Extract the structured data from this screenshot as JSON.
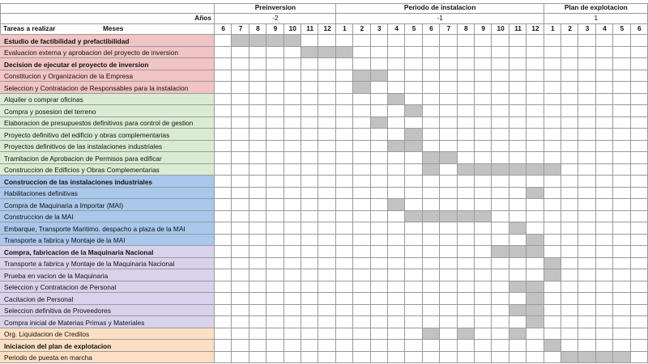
{
  "header": {
    "anos_label": "Años",
    "tareas_label": "Tareas a realizar",
    "meses_label": "Meses"
  },
  "phases": [
    {
      "title": "Preinversion",
      "year": "-2",
      "months": [
        "6",
        "7",
        "8",
        "9",
        "10",
        "11",
        "12"
      ]
    },
    {
      "title": "Periodo de instalacion",
      "year": "-1",
      "months": [
        "1",
        "2",
        "3",
        "4",
        "5",
        "6",
        "7",
        "8",
        "9",
        "10",
        "11",
        "12"
      ]
    },
    {
      "title": "Plan de explotacion",
      "year": "1",
      "months": [
        "1",
        "2",
        "3",
        "4",
        "5",
        "6"
      ]
    }
  ],
  "colors": {
    "red": "#f2c4c4",
    "green": "#d9ecd2",
    "blue": "#a9c8ec",
    "purple": "#d9d2ec",
    "orange": "#fde0c4",
    "bar": "#c2c2c2",
    "bar_light": "#d8d8d8"
  },
  "tasks": [
    {
      "label": "Estudio de factibilidad y prefactibilidad",
      "bold": true,
      "color": "red",
      "bars": [
        1,
        2,
        3,
        4
      ]
    },
    {
      "label": "Evaluacion externa y aprobacion del proyecto de inversion",
      "bold": false,
      "color": "red",
      "bars": [
        5,
        6,
        7
      ]
    },
    {
      "label": "Decision de ejecutar el proyecto de inversion",
      "bold": true,
      "color": "red",
      "bars": []
    },
    {
      "label": "Constitucion y Organizacion de la Empresa",
      "bold": false,
      "color": "red",
      "bars": [
        8,
        9
      ]
    },
    {
      "label": "Seleccion y Contratacion de Responsables para la instalacion",
      "bold": false,
      "color": "red",
      "bars": [
        8
      ]
    },
    {
      "label": "Alquiler o comprar oficinas",
      "bold": false,
      "color": "green",
      "bars": [
        10
      ]
    },
    {
      "label": "Compra y posesion del terreno",
      "bold": false,
      "color": "green",
      "bars": [
        11
      ]
    },
    {
      "label": "Elaboracion de presupuestos definitivos para control de gestion",
      "bold": false,
      "color": "green",
      "bars": [
        9
      ]
    },
    {
      "label": "Proyecto definitivo del edificio y obras complementarias",
      "bold": false,
      "color": "green",
      "bars": [
        11
      ]
    },
    {
      "label": "Proyectos definitivos de las instalaciones industriales",
      "bold": false,
      "color": "green",
      "bars": [
        10,
        11
      ]
    },
    {
      "label": "Tramitacion de Aprobacion de Permisos para edificar",
      "bold": false,
      "color": "green",
      "bars": [
        12,
        13
      ]
    },
    {
      "label": "Construccion de Edificios y Obras Complementarias",
      "bold": false,
      "color": "green",
      "bars": [
        12,
        14,
        15,
        16,
        17,
        18,
        19
      ]
    },
    {
      "label": "Construccion de las instalaciones industriales",
      "bold": true,
      "color": "blue",
      "bars": []
    },
    {
      "label": "Habilitaciones definitivas",
      "bold": false,
      "color": "blue",
      "bars": [
        18
      ]
    },
    {
      "label": "Compra de Maquinaria a Importar (MAI)",
      "bold": false,
      "color": "blue",
      "bars": [
        10
      ]
    },
    {
      "label": "Construccion de la MAI",
      "bold": false,
      "color": "blue",
      "bars": [
        11,
        12,
        13,
        14,
        15
      ]
    },
    {
      "label": "Embarque, Transporte Maritimo. despacho a plaza de la MAI",
      "bold": false,
      "color": "blue",
      "bars": [
        17
      ]
    },
    {
      "label": "Transporte a fabrica y Montaje de la MAI",
      "bold": false,
      "color": "blue",
      "bars": [
        18
      ]
    },
    {
      "label": "Compra, fabricacion de la Maquinaria Nacional",
      "bold": true,
      "color": "purple",
      "bars": [
        16,
        17,
        18
      ]
    },
    {
      "label": "Transporte a fabrica y Montaje de la Maquinaria Nacional",
      "bold": false,
      "color": "purple",
      "bars": [
        19
      ]
    },
    {
      "label": "Prueba en vacion de la Maquinaria",
      "bold": false,
      "color": "purple",
      "bars": [
        19
      ]
    },
    {
      "label": "Seleccion y Contratacion de Personal",
      "bold": false,
      "color": "purple",
      "bars": [
        17,
        18
      ]
    },
    {
      "label": "Cacitacion de Personal",
      "bold": false,
      "color": "purple",
      "bars": [
        18
      ]
    },
    {
      "label": "Seleccion definitiva de Proveedores",
      "bold": false,
      "color": "purple",
      "bars": [
        17,
        18
      ]
    },
    {
      "label": "Compra inicial de Materias Primas y Materiales",
      "bold": false,
      "color": "purple",
      "bars": [
        18
      ]
    },
    {
      "label": "Org. Liquidacion de Creditos",
      "bold": false,
      "color": "orange",
      "bars": [
        12,
        14,
        17
      ]
    },
    {
      "label": "Iniciacion del plan de explotacion",
      "bold": true,
      "color": "orange",
      "bars": [
        19
      ]
    },
    {
      "label": "Periodo de puesta en marcha",
      "bold": false,
      "color": "orange",
      "bars": [
        20,
        21,
        22,
        23
      ]
    }
  ]
}
